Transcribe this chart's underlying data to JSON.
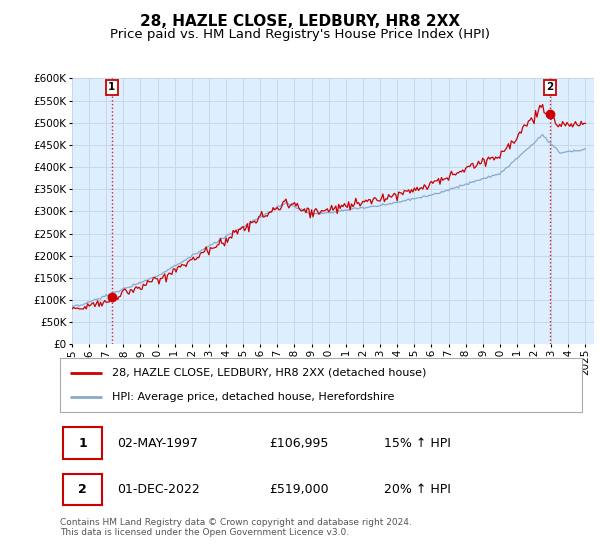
{
  "title": "28, HAZLE CLOSE, LEDBURY, HR8 2XX",
  "subtitle": "Price paid vs. HM Land Registry's House Price Index (HPI)",
  "ylim": [
    0,
    600000
  ],
  "yticks": [
    0,
    50000,
    100000,
    150000,
    200000,
    250000,
    300000,
    350000,
    400000,
    450000,
    500000,
    550000,
    600000
  ],
  "xlim_start": 1995.0,
  "xlim_end": 2025.5,
  "price_paid_color": "#cc0000",
  "hpi_color": "#88aacc",
  "grid_color": "#c8d8e8",
  "background_color": "#ddeeff",
  "sale1_x": 1997.33,
  "sale1_y": 106995,
  "sale1_label": "1",
  "sale1_date": "02-MAY-1997",
  "sale1_price": "£106,995",
  "sale1_hpi": "15% ↑ HPI",
  "sale2_x": 2022.917,
  "sale2_y": 519000,
  "sale2_label": "2",
  "sale2_date": "01-DEC-2022",
  "sale2_price": "£519,000",
  "sale2_hpi": "20% ↑ HPI",
  "legend_line1": "28, HAZLE CLOSE, LEDBURY, HR8 2XX (detached house)",
  "legend_line2": "HPI: Average price, detached house, Herefordshire",
  "footer": "Contains HM Land Registry data © Crown copyright and database right 2024.\nThis data is licensed under the Open Government Licence v3.0.",
  "title_fontsize": 11,
  "subtitle_fontsize": 9.5,
  "tick_fontsize": 7.5,
  "legend_fontsize": 8,
  "footer_fontsize": 6.5
}
